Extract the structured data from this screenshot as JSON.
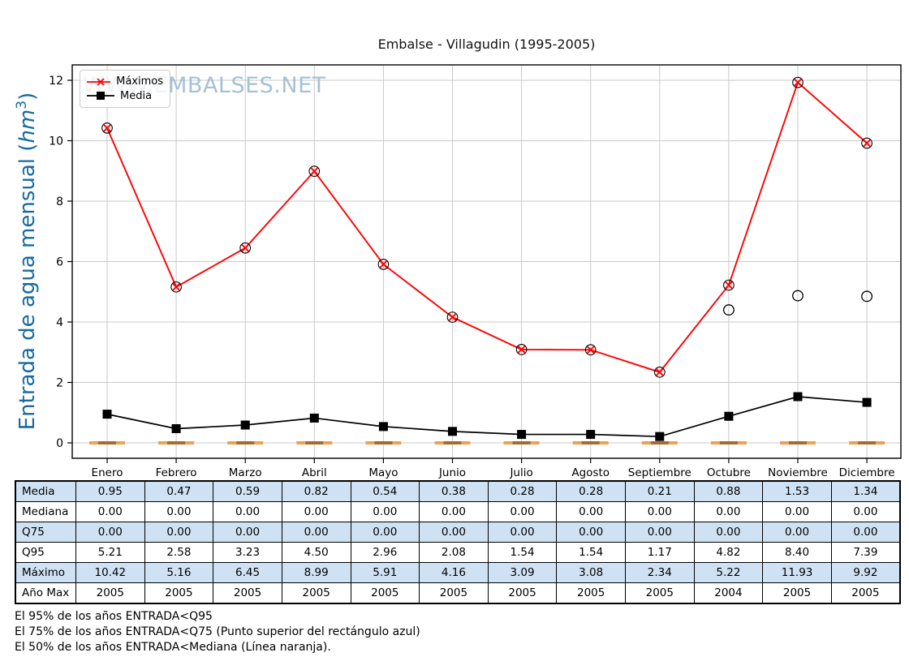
{
  "title": "Embalse - Villagudin (1995-2005)",
  "watermark": "WWW.EMBALSES.NET",
  "y_axis": {
    "label_prefix": "Entrada de agua mensual (",
    "label_unit": "hm",
    "label_exp": "3",
    "label_suffix": ")"
  },
  "legend": {
    "maximos": "Máximos",
    "media": "Media"
  },
  "colors": {
    "maximos_red": "#ff0000",
    "media_black": "#000000",
    "mediana_orange": "#f0a053",
    "mediana_orange_dark": "#aa6a2e",
    "grid_gray": "#c9c9c9",
    "axis_black": "#000000",
    "ylabel_blue": "#176ba0",
    "watermark_blue": "#8fb3cd",
    "table_row_blue": "#cfe2f3"
  },
  "chart_data": {
    "type": "line",
    "categories": [
      "Enero",
      "Febrero",
      "Marzo",
      "Abril",
      "Mayo",
      "Junio",
      "Julio",
      "Agosto",
      "Septiembre",
      "Octubre",
      "Noviembre",
      "Diciembre"
    ],
    "yticks": [
      0,
      2,
      4,
      6,
      8,
      10,
      12
    ],
    "ylim": [
      -0.5,
      13.0
    ],
    "grid": true,
    "legend_position": "upper left",
    "series": [
      {
        "name": "Máximos",
        "marker": "x-in-circle",
        "values": [
          10.42,
          5.16,
          6.45,
          8.99,
          5.91,
          4.16,
          3.09,
          3.08,
          2.34,
          5.22,
          11.93,
          9.92
        ]
      },
      {
        "name": "Media",
        "marker": "filled-square",
        "values": [
          0.95,
          0.47,
          0.59,
          0.82,
          0.54,
          0.38,
          0.28,
          0.28,
          0.21,
          0.88,
          1.53,
          1.34
        ]
      },
      {
        "name": "Mediana",
        "marker": "orange-dash",
        "values": [
          0,
          0,
          0,
          0,
          0,
          0,
          0,
          0,
          0,
          0,
          0,
          0
        ]
      }
    ],
    "outlier_points": [
      {
        "month": "Octubre",
        "value": 4.4
      },
      {
        "month": "Noviembre",
        "value": 4.87
      },
      {
        "month": "Diciembre",
        "value": 4.85
      }
    ]
  },
  "table": {
    "rows": [
      {
        "label": "Media",
        "values": [
          "0.95",
          "0.47",
          "0.59",
          "0.82",
          "0.54",
          "0.38",
          "0.28",
          "0.28",
          "0.21",
          "0.88",
          "1.53",
          "1.34"
        ]
      },
      {
        "label": "Mediana",
        "values": [
          "0.00",
          "0.00",
          "0.00",
          "0.00",
          "0.00",
          "0.00",
          "0.00",
          "0.00",
          "0.00",
          "0.00",
          "0.00",
          "0.00"
        ]
      },
      {
        "label": "Q75",
        "values": [
          "0.00",
          "0.00",
          "0.00",
          "0.00",
          "0.00",
          "0.00",
          "0.00",
          "0.00",
          "0.00",
          "0.00",
          "0.00",
          "0.00"
        ]
      },
      {
        "label": "Q95",
        "values": [
          "5.21",
          "2.58",
          "3.23",
          "4.50",
          "2.96",
          "2.08",
          "1.54",
          "1.54",
          "1.17",
          "4.82",
          "8.40",
          "7.39"
        ]
      },
      {
        "label": "Máximo",
        "values": [
          "10.42",
          "5.16",
          "6.45",
          "8.99",
          "5.91",
          "4.16",
          "3.09",
          "3.08",
          "2.34",
          "5.22",
          "11.93",
          "9.92"
        ]
      },
      {
        "label": "Año Max",
        "values": [
          "2005",
          "2005",
          "2005",
          "2005",
          "2005",
          "2005",
          "2005",
          "2005",
          "2005",
          "2004",
          "2005",
          "2005"
        ]
      }
    ]
  },
  "footer": {
    "lines": [
      "El 95% de los años ENTRADA<Q95",
      "El 75% de los años ENTRADA<Q75 (Punto superior del rectángulo azul)",
      "El 50% de los años ENTRADA<Mediana (Línea naranja)."
    ]
  }
}
